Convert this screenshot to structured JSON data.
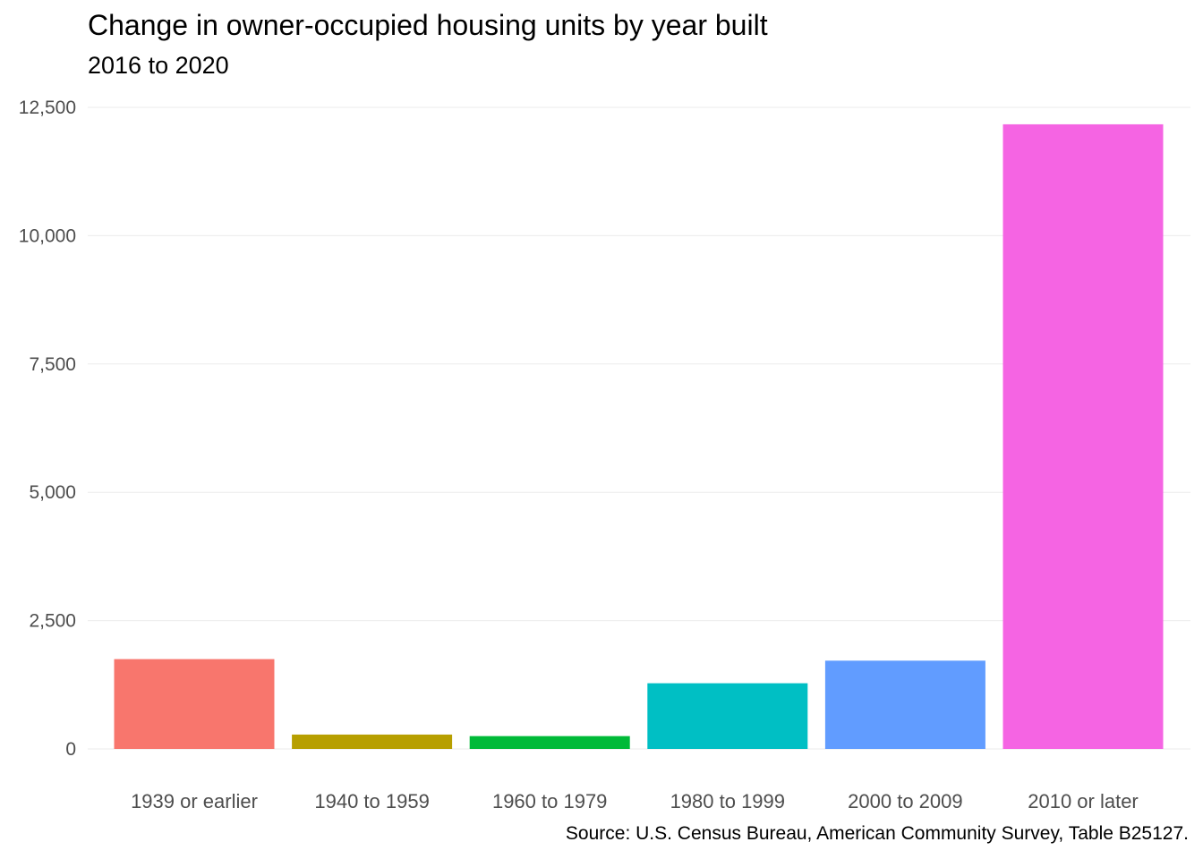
{
  "chart_data": {
    "type": "bar",
    "title": "Change in owner-occupied housing units by year built",
    "subtitle": "2016 to 2020",
    "xlabel": "",
    "ylabel": "",
    "categories": [
      "1939 or earlier",
      "1940 to 1959",
      "1960 to 1979",
      "1980 to 1999",
      "2000 to 2009",
      "2010 or later"
    ],
    "values": [
      1750,
      280,
      250,
      1280,
      1720,
      12170
    ],
    "colors": [
      "#F8766D",
      "#B79F00",
      "#00BA38",
      "#00BFC4",
      "#619CFF",
      "#F564E3"
    ],
    "ylim": [
      0,
      12500
    ],
    "yticks": [
      0,
      2500,
      5000,
      7500,
      10000,
      12500
    ],
    "ytick_labels": [
      "0",
      "2,500",
      "5,000",
      "7,500",
      "10,000",
      "12,500"
    ],
    "grid": true,
    "legend": "none",
    "caption": "Source: U.S. Census Bureau, American Community Survey, Table B25127."
  }
}
